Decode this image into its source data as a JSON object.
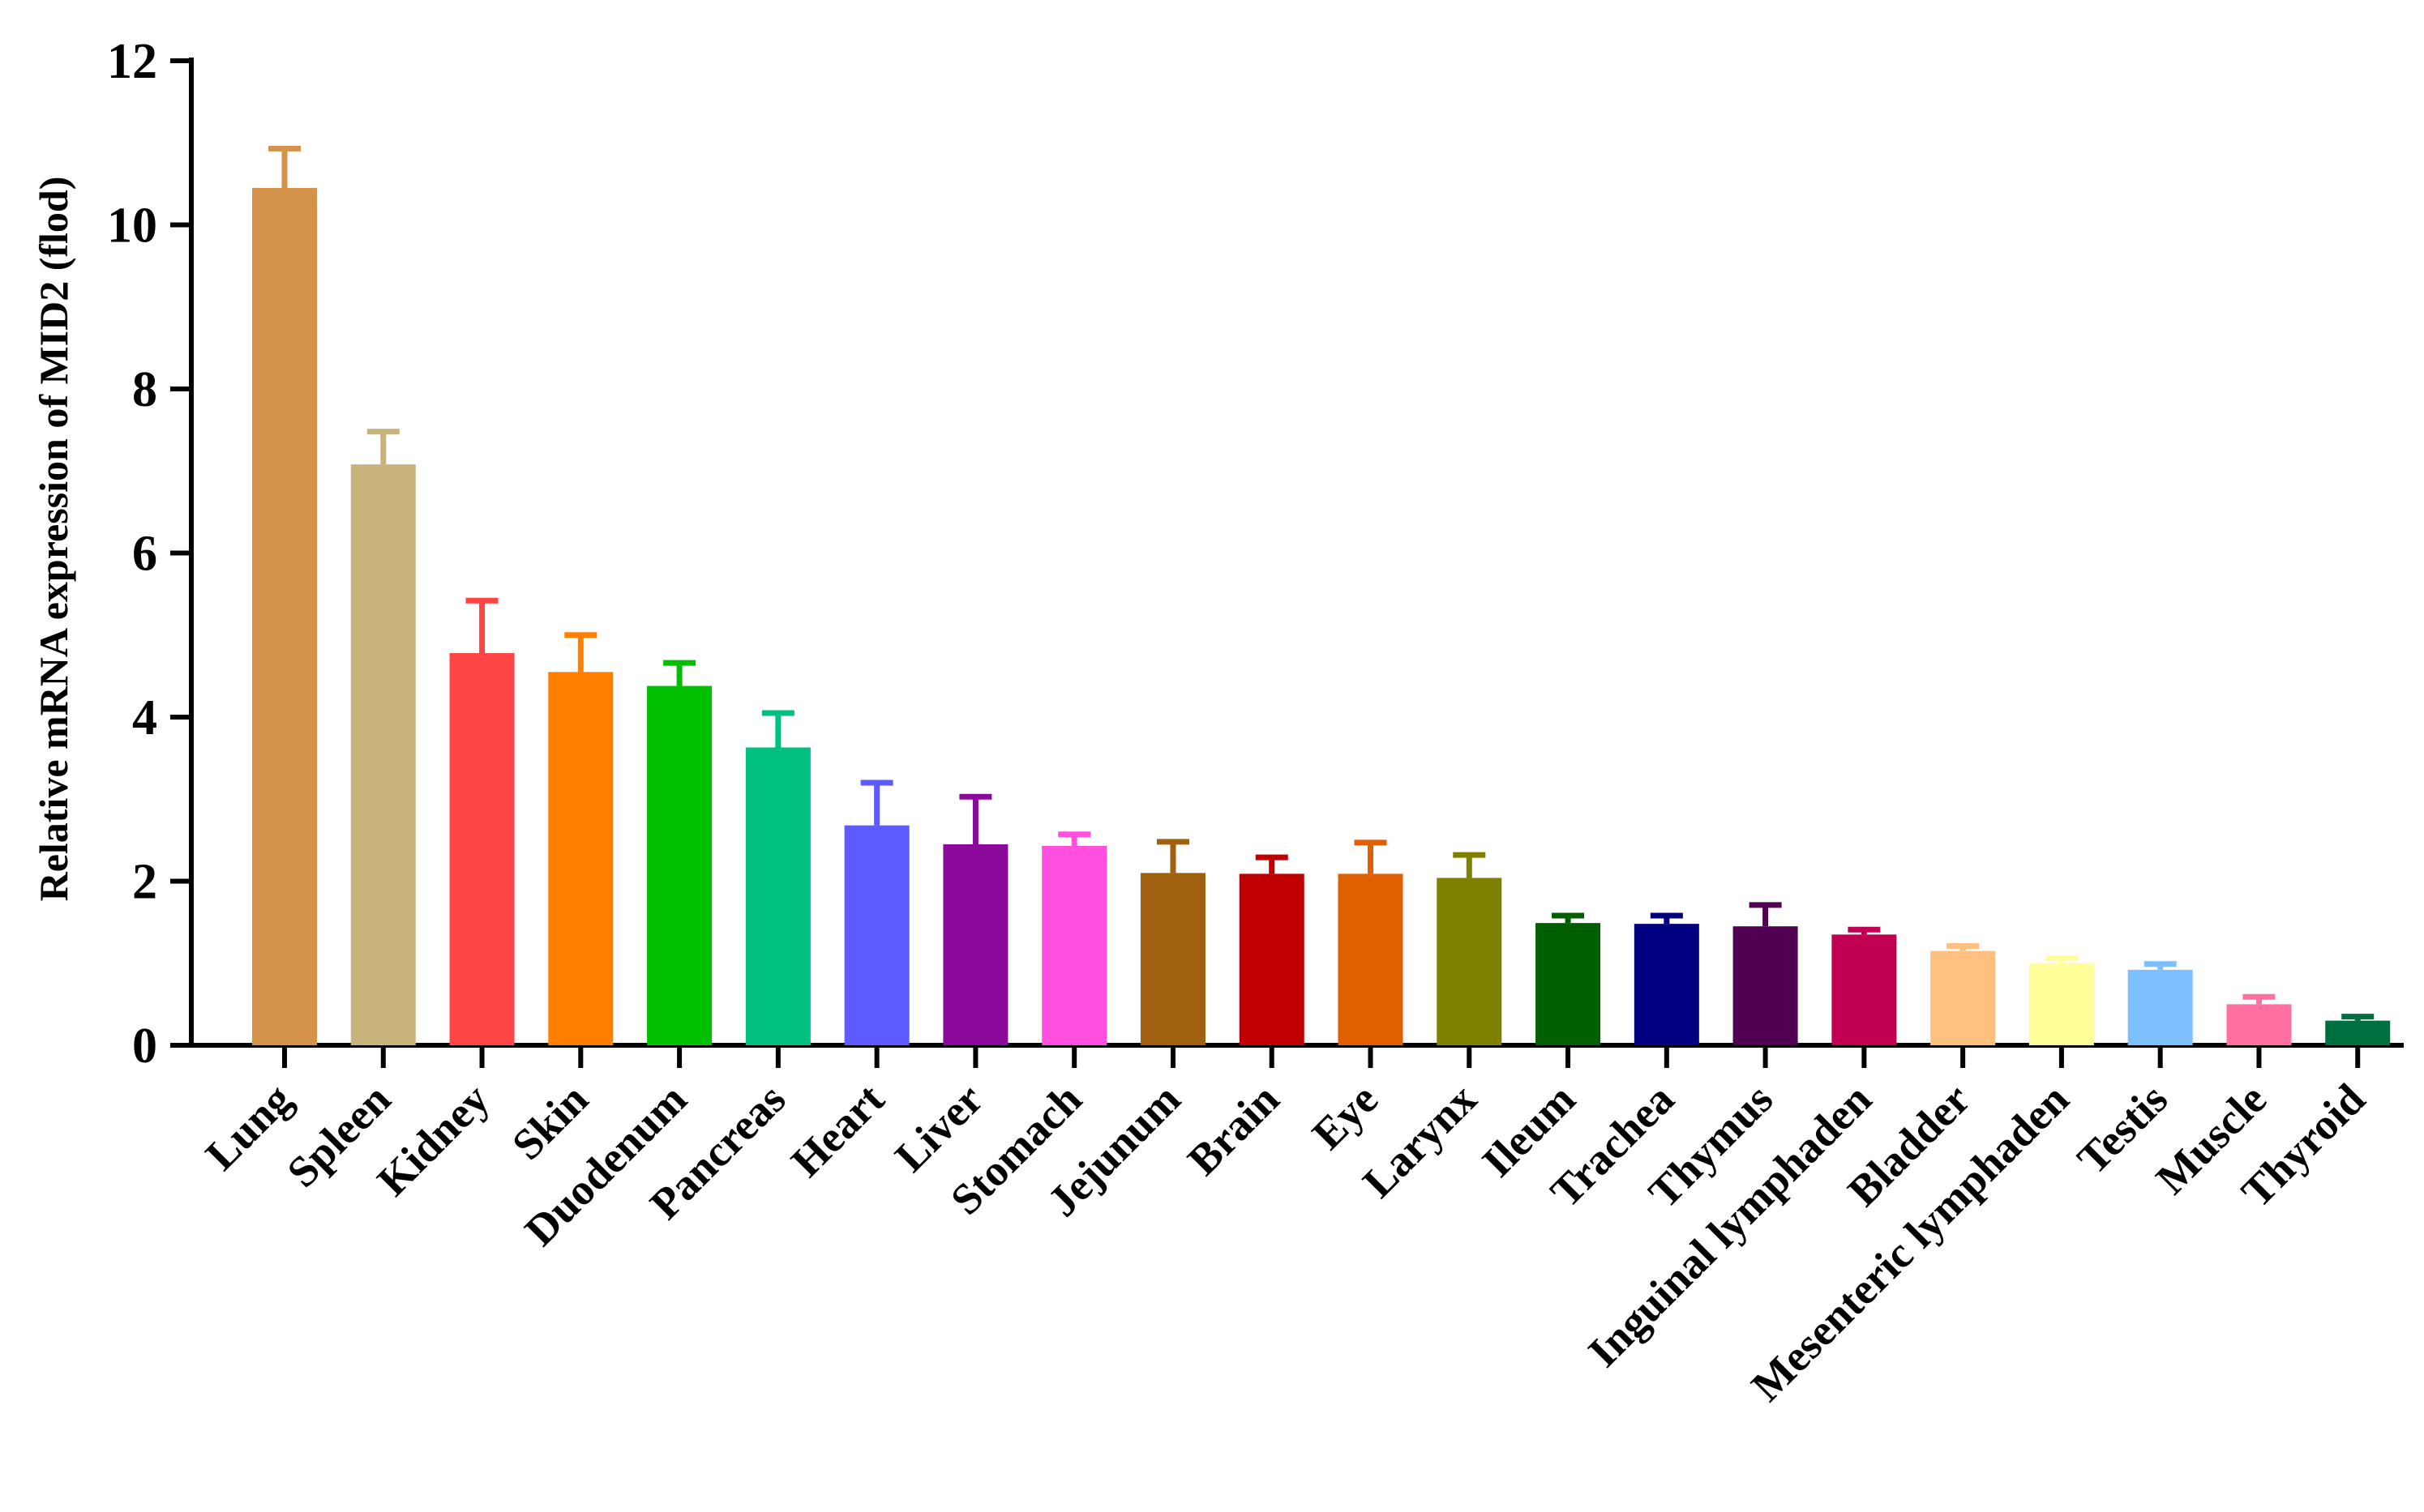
{
  "chart_data": {
    "type": "bar",
    "title": "",
    "xlabel": "",
    "ylabel": "Relative mRNA expression of MID2 (flod)",
    "ylim": [
      0,
      12
    ],
    "yticks": [
      "0",
      "2",
      "4",
      "6",
      "8",
      "10",
      "12"
    ],
    "grid": false,
    "legend": "none",
    "error_bars": "upper",
    "categories": [
      "Lung",
      "Spleen",
      "Kidney",
      "Skin",
      "Duodenum",
      "Pancreas",
      "Heart",
      "Liver",
      "Stomach",
      "Jejunum",
      "Brain",
      "Eye",
      "Larynx",
      "Ileum",
      "Trachea",
      "Thymus",
      "Inguinal lymphaden",
      "Bladder",
      "Mesenteric lymphaden",
      "Testis",
      "Muscle",
      "Thyroid"
    ],
    "values": [
      10.45,
      7.08,
      4.78,
      4.55,
      4.38,
      3.63,
      2.68,
      2.45,
      2.43,
      2.1,
      2.09,
      2.09,
      2.04,
      1.49,
      1.48,
      1.45,
      1.35,
      1.15,
      1.0,
      0.92,
      0.5,
      0.3
    ],
    "errors": [
      0.48,
      0.4,
      0.64,
      0.45,
      0.28,
      0.42,
      0.52,
      0.58,
      0.14,
      0.38,
      0.2,
      0.38,
      0.28,
      0.09,
      0.1,
      0.26,
      0.06,
      0.06,
      0.06,
      0.07,
      0.09,
      0.05
    ],
    "colors": [
      "#D4924A",
      "#C8B47A",
      "#FF4444",
      "#FF8000",
      "#00C000",
      "#00C080",
      "#5B5BFF",
      "#8B0A9B",
      "#FF50E0",
      "#A0600F",
      "#C00000",
      "#E06000",
      "#808000",
      "#006000",
      "#000080",
      "#500050",
      "#C00050",
      "#FFC080",
      "#FFFF99",
      "#7EC0FF",
      "#FF6FA0",
      "#006F40"
    ]
  }
}
